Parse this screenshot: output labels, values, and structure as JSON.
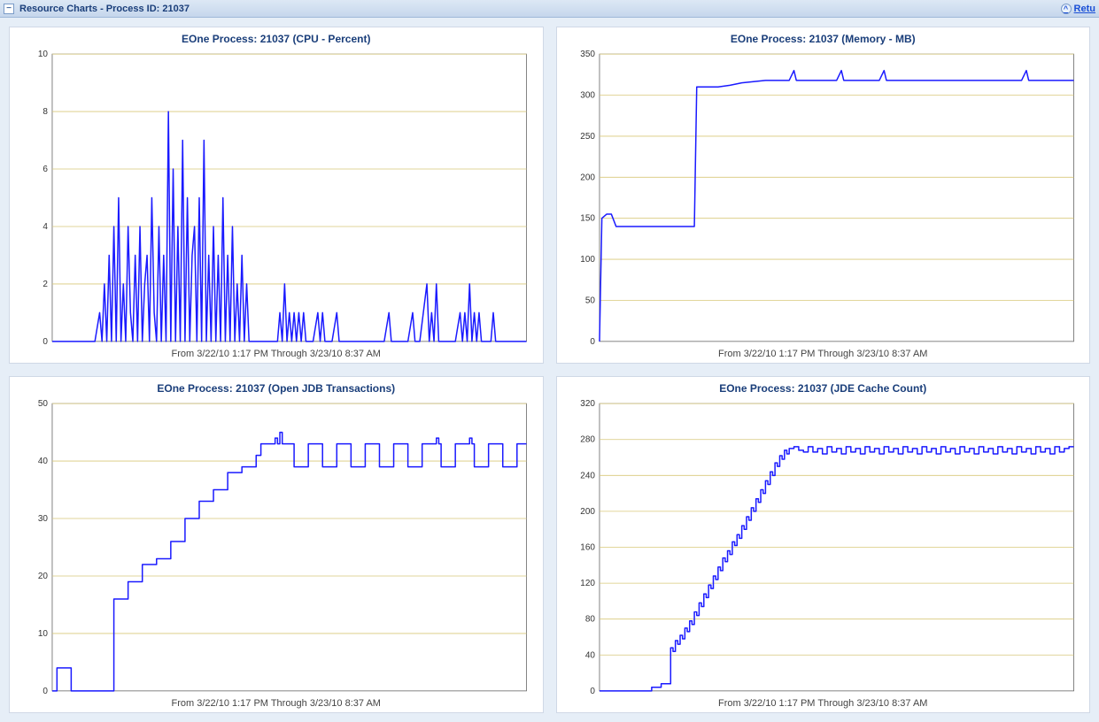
{
  "header": {
    "collapse_glyph": "−",
    "title": "Resource Charts - Process ID: 21037",
    "return_label": "Retu",
    "return_icon_glyph": "^"
  },
  "common": {
    "caption": "From 3/22/10 1:17 PM Through 3/23/10 8:37 AM",
    "line_color": "#1a1aff",
    "grid_color": "#d8c87a",
    "axis_color": "#666666",
    "background_color": "#ffffff",
    "title_color": "#1a3e7a",
    "tick_font_size": 10,
    "title_font_size": 12,
    "line_width": 1.5,
    "x_domain": [
      0,
      200
    ]
  },
  "charts": [
    {
      "id": "cpu",
      "title": "EOne Process: 21037 (CPU - Percent)",
      "type": "line",
      "ylim": [
        0,
        10
      ],
      "yticks": [
        0,
        2,
        4,
        6,
        8,
        10
      ],
      "data": [
        [
          0,
          0
        ],
        [
          5,
          0
        ],
        [
          10,
          0
        ],
        [
          15,
          0
        ],
        [
          18,
          0
        ],
        [
          20,
          1
        ],
        [
          21,
          0
        ],
        [
          22,
          2
        ],
        [
          23,
          0
        ],
        [
          24,
          3
        ],
        [
          25,
          0
        ],
        [
          26,
          4
        ],
        [
          27,
          0
        ],
        [
          28,
          5
        ],
        [
          29,
          0
        ],
        [
          30,
          2
        ],
        [
          31,
          0
        ],
        [
          32,
          4
        ],
        [
          33,
          1
        ],
        [
          34,
          0
        ],
        [
          35,
          3
        ],
        [
          36,
          0
        ],
        [
          37,
          4
        ],
        [
          38,
          0
        ],
        [
          39,
          2
        ],
        [
          40,
          3
        ],
        [
          41,
          0
        ],
        [
          42,
          5
        ],
        [
          43,
          1
        ],
        [
          44,
          0
        ],
        [
          45,
          4
        ],
        [
          46,
          0
        ],
        [
          47,
          3
        ],
        [
          48,
          0
        ],
        [
          49,
          8
        ],
        [
          50,
          0
        ],
        [
          51,
          6
        ],
        [
          52,
          0
        ],
        [
          53,
          4
        ],
        [
          54,
          0
        ],
        [
          55,
          7
        ],
        [
          56,
          0
        ],
        [
          57,
          5
        ],
        [
          58,
          0
        ],
        [
          59,
          3
        ],
        [
          60,
          4
        ],
        [
          61,
          0
        ],
        [
          62,
          5
        ],
        [
          63,
          0
        ],
        [
          64,
          7
        ],
        [
          65,
          0
        ],
        [
          66,
          3
        ],
        [
          67,
          0
        ],
        [
          68,
          4
        ],
        [
          69,
          0
        ],
        [
          70,
          3
        ],
        [
          71,
          0
        ],
        [
          72,
          5
        ],
        [
          73,
          0
        ],
        [
          74,
          3
        ],
        [
          75,
          0
        ],
        [
          76,
          4
        ],
        [
          77,
          0
        ],
        [
          78,
          2
        ],
        [
          79,
          0
        ],
        [
          80,
          3
        ],
        [
          81,
          0
        ],
        [
          82,
          2
        ],
        [
          83,
          0
        ],
        [
          85,
          0
        ],
        [
          90,
          0
        ],
        [
          95,
          0
        ],
        [
          96,
          1
        ],
        [
          97,
          0
        ],
        [
          98,
          2
        ],
        [
          99,
          0
        ],
        [
          100,
          1
        ],
        [
          101,
          0
        ],
        [
          102,
          1
        ],
        [
          103,
          0
        ],
        [
          104,
          1
        ],
        [
          105,
          0
        ],
        [
          106,
          1
        ],
        [
          107,
          0
        ],
        [
          110,
          0
        ],
        [
          112,
          1
        ],
        [
          113,
          0
        ],
        [
          114,
          1
        ],
        [
          115,
          0
        ],
        [
          118,
          0
        ],
        [
          120,
          1
        ],
        [
          121,
          0
        ],
        [
          125,
          0
        ],
        [
          130,
          0
        ],
        [
          135,
          0
        ],
        [
          140,
          0
        ],
        [
          142,
          1
        ],
        [
          143,
          0
        ],
        [
          145,
          0
        ],
        [
          150,
          0
        ],
        [
          152,
          1
        ],
        [
          153,
          0
        ],
        [
          155,
          0
        ],
        [
          158,
          2
        ],
        [
          159,
          0
        ],
        [
          160,
          1
        ],
        [
          161,
          0
        ],
        [
          162,
          2
        ],
        [
          163,
          0
        ],
        [
          165,
          0
        ],
        [
          170,
          0
        ],
        [
          172,
          1
        ],
        [
          173,
          0
        ],
        [
          174,
          1
        ],
        [
          175,
          0
        ],
        [
          176,
          2
        ],
        [
          177,
          0
        ],
        [
          178,
          1
        ],
        [
          179,
          0
        ],
        [
          180,
          1
        ],
        [
          181,
          0
        ],
        [
          185,
          0
        ],
        [
          186,
          1
        ],
        [
          187,
          0
        ],
        [
          190,
          0
        ],
        [
          195,
          0
        ],
        [
          200,
          0
        ]
      ]
    },
    {
      "id": "memory",
      "title": "EOne Process: 21037 (Memory - MB)",
      "type": "line",
      "ylim": [
        0,
        350
      ],
      "yticks": [
        0,
        50,
        100,
        150,
        200,
        250,
        300,
        350
      ],
      "data": [
        [
          0,
          0
        ],
        [
          1,
          150
        ],
        [
          3,
          155
        ],
        [
          5,
          155
        ],
        [
          7,
          140
        ],
        [
          10,
          140
        ],
        [
          20,
          140
        ],
        [
          30,
          140
        ],
        [
          40,
          140
        ],
        [
          41,
          310
        ],
        [
          45,
          310
        ],
        [
          50,
          310
        ],
        [
          55,
          312
        ],
        [
          60,
          315
        ],
        [
          70,
          318
        ],
        [
          80,
          318
        ],
        [
          82,
          330
        ],
        [
          83,
          318
        ],
        [
          90,
          318
        ],
        [
          100,
          318
        ],
        [
          102,
          330
        ],
        [
          103,
          318
        ],
        [
          110,
          318
        ],
        [
          118,
          318
        ],
        [
          120,
          330
        ],
        [
          121,
          318
        ],
        [
          130,
          318
        ],
        [
          140,
          318
        ],
        [
          150,
          318
        ],
        [
          160,
          318
        ],
        [
          170,
          318
        ],
        [
          178,
          318
        ],
        [
          180,
          330
        ],
        [
          181,
          318
        ],
        [
          190,
          318
        ],
        [
          200,
          318
        ]
      ]
    },
    {
      "id": "jdb",
      "title": "EOne Process: 21037 (Open JDB Transactions)",
      "type": "step",
      "ylim": [
        0,
        50
      ],
      "yticks": [
        0,
        10,
        20,
        30,
        40,
        50
      ],
      "data": [
        [
          0,
          0
        ],
        [
          2,
          4
        ],
        [
          6,
          4
        ],
        [
          8,
          0
        ],
        [
          25,
          0
        ],
        [
          26,
          16
        ],
        [
          30,
          16
        ],
        [
          32,
          19
        ],
        [
          36,
          19
        ],
        [
          38,
          22
        ],
        [
          42,
          22
        ],
        [
          44,
          23
        ],
        [
          48,
          23
        ],
        [
          50,
          26
        ],
        [
          54,
          26
        ],
        [
          56,
          30
        ],
        [
          60,
          30
        ],
        [
          62,
          33
        ],
        [
          66,
          33
        ],
        [
          68,
          35
        ],
        [
          72,
          35
        ],
        [
          74,
          38
        ],
        [
          78,
          38
        ],
        [
          80,
          39
        ],
        [
          84,
          39
        ],
        [
          86,
          41
        ],
        [
          88,
          43
        ],
        [
          92,
          43
        ],
        [
          94,
          44
        ],
        [
          95,
          43
        ],
        [
          96,
          45
        ],
        [
          97,
          43
        ],
        [
          100,
          43
        ],
        [
          102,
          39
        ],
        [
          106,
          39
        ],
        [
          108,
          43
        ],
        [
          112,
          43
        ],
        [
          114,
          39
        ],
        [
          118,
          39
        ],
        [
          120,
          43
        ],
        [
          124,
          43
        ],
        [
          126,
          39
        ],
        [
          130,
          39
        ],
        [
          132,
          43
        ],
        [
          136,
          43
        ],
        [
          138,
          39
        ],
        [
          142,
          39
        ],
        [
          144,
          43
        ],
        [
          148,
          43
        ],
        [
          150,
          39
        ],
        [
          154,
          39
        ],
        [
          156,
          43
        ],
        [
          160,
          43
        ],
        [
          162,
          44
        ],
        [
          163,
          43
        ],
        [
          164,
          39
        ],
        [
          168,
          39
        ],
        [
          170,
          43
        ],
        [
          174,
          43
        ],
        [
          176,
          44
        ],
        [
          177,
          43
        ],
        [
          178,
          39
        ],
        [
          182,
          39
        ],
        [
          184,
          43
        ],
        [
          188,
          43
        ],
        [
          190,
          39
        ],
        [
          194,
          39
        ],
        [
          196,
          43
        ],
        [
          200,
          43
        ]
      ]
    },
    {
      "id": "cache",
      "title": "EOne Process: 21037 (JDE Cache Count)",
      "type": "step",
      "ylim": [
        0,
        320
      ],
      "yticks": [
        0,
        40,
        80,
        120,
        160,
        200,
        240,
        280,
        320
      ],
      "data": [
        [
          0,
          0
        ],
        [
          20,
          0
        ],
        [
          22,
          4
        ],
        [
          24,
          4
        ],
        [
          26,
          8
        ],
        [
          28,
          8
        ],
        [
          30,
          48
        ],
        [
          31,
          44
        ],
        [
          32,
          56
        ],
        [
          33,
          52
        ],
        [
          34,
          62
        ],
        [
          35,
          58
        ],
        [
          36,
          70
        ],
        [
          37,
          66
        ],
        [
          38,
          78
        ],
        [
          39,
          74
        ],
        [
          40,
          88
        ],
        [
          41,
          84
        ],
        [
          42,
          98
        ],
        [
          43,
          94
        ],
        [
          44,
          108
        ],
        [
          45,
          104
        ],
        [
          46,
          118
        ],
        [
          47,
          114
        ],
        [
          48,
          128
        ],
        [
          49,
          124
        ],
        [
          50,
          138
        ],
        [
          51,
          134
        ],
        [
          52,
          148
        ],
        [
          53,
          144
        ],
        [
          54,
          156
        ],
        [
          55,
          152
        ],
        [
          56,
          166
        ],
        [
          57,
          162
        ],
        [
          58,
          174
        ],
        [
          59,
          170
        ],
        [
          60,
          184
        ],
        [
          61,
          180
        ],
        [
          62,
          194
        ],
        [
          63,
          190
        ],
        [
          64,
          204
        ],
        [
          65,
          200
        ],
        [
          66,
          214
        ],
        [
          67,
          210
        ],
        [
          68,
          224
        ],
        [
          69,
          220
        ],
        [
          70,
          234
        ],
        [
          71,
          230
        ],
        [
          72,
          244
        ],
        [
          73,
          240
        ],
        [
          74,
          254
        ],
        [
          75,
          250
        ],
        [
          76,
          262
        ],
        [
          77,
          258
        ],
        [
          78,
          268
        ],
        [
          79,
          264
        ],
        [
          80,
          270
        ],
        [
          82,
          272
        ],
        [
          84,
          268
        ],
        [
          86,
          266
        ],
        [
          88,
          272
        ],
        [
          90,
          266
        ],
        [
          92,
          270
        ],
        [
          94,
          264
        ],
        [
          96,
          272
        ],
        [
          98,
          266
        ],
        [
          100,
          270
        ],
        [
          102,
          264
        ],
        [
          104,
          272
        ],
        [
          106,
          266
        ],
        [
          108,
          270
        ],
        [
          110,
          264
        ],
        [
          112,
          272
        ],
        [
          114,
          266
        ],
        [
          116,
          270
        ],
        [
          118,
          264
        ],
        [
          120,
          272
        ],
        [
          122,
          266
        ],
        [
          124,
          270
        ],
        [
          126,
          264
        ],
        [
          128,
          272
        ],
        [
          130,
          266
        ],
        [
          132,
          270
        ],
        [
          134,
          264
        ],
        [
          136,
          272
        ],
        [
          138,
          266
        ],
        [
          140,
          270
        ],
        [
          142,
          264
        ],
        [
          144,
          272
        ],
        [
          146,
          266
        ],
        [
          148,
          270
        ],
        [
          150,
          264
        ],
        [
          152,
          272
        ],
        [
          154,
          266
        ],
        [
          156,
          270
        ],
        [
          158,
          264
        ],
        [
          160,
          272
        ],
        [
          162,
          266
        ],
        [
          164,
          270
        ],
        [
          166,
          264
        ],
        [
          168,
          272
        ],
        [
          170,
          266
        ],
        [
          172,
          270
        ],
        [
          174,
          264
        ],
        [
          176,
          272
        ],
        [
          178,
          266
        ],
        [
          180,
          270
        ],
        [
          182,
          264
        ],
        [
          184,
          272
        ],
        [
          186,
          266
        ],
        [
          188,
          270
        ],
        [
          190,
          264
        ],
        [
          192,
          272
        ],
        [
          194,
          266
        ],
        [
          196,
          270
        ],
        [
          198,
          272
        ],
        [
          200,
          272
        ]
      ]
    }
  ]
}
